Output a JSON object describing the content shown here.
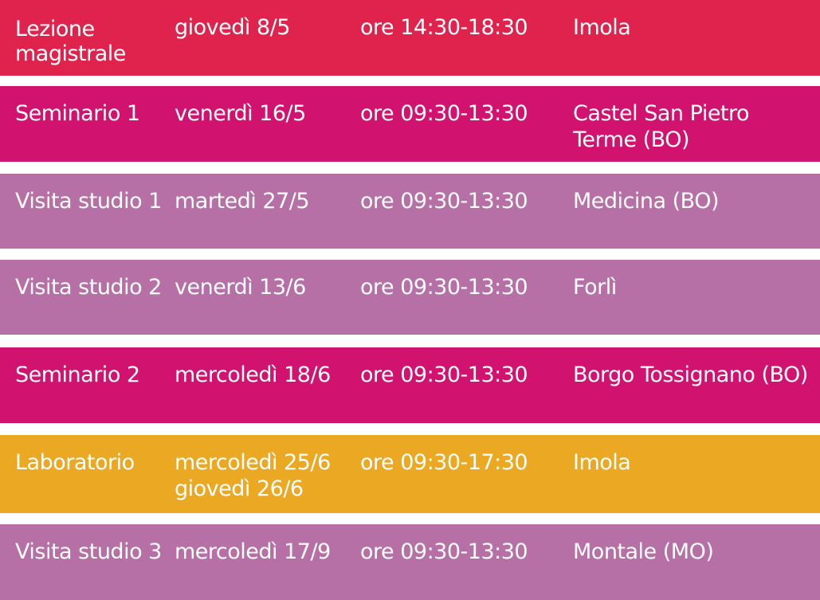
{
  "colors": {
    "red": "#e0234c",
    "magenta": "#d1126f",
    "lilac": "#b770a6",
    "yellow": "#eaa823",
    "text": "#ffffff"
  },
  "rows": [
    {
      "activity": "Lezione\nmagistrale",
      "date": "giovedì 8/5",
      "time": "ore 14:30-18:30",
      "place": "Imola"
    },
    {
      "activity": "Seminario 1",
      "date": "venerdì 16/5",
      "time": "ore 09:30-13:30",
      "place": "Castel San Pietro\nTerme (BO)"
    },
    {
      "activity": "Visita studio 1",
      "date": "martedì 27/5",
      "time": "ore 09:30-13:30",
      "place": "Medicina (BO)"
    },
    {
      "activity": "Visita studio 2",
      "date": "venerdì 13/6",
      "time": "ore 09:30-13:30",
      "place": "Forlì"
    },
    {
      "activity": "Seminario 2",
      "date": "mercoledì 18/6",
      "time": "ore 09:30-13:30",
      "place": "Borgo Tossignano (BO)"
    },
    {
      "activity": "Laboratorio",
      "date": "mercoledì 25/6\ngiovedì 26/6",
      "time": "ore 09:30-17:30",
      "place": "Imola"
    },
    {
      "activity": "Visita studio 3",
      "date": "mercoledì 17/9",
      "time": "ore 09:30-13:30",
      "place": "Montale (MO)"
    }
  ]
}
